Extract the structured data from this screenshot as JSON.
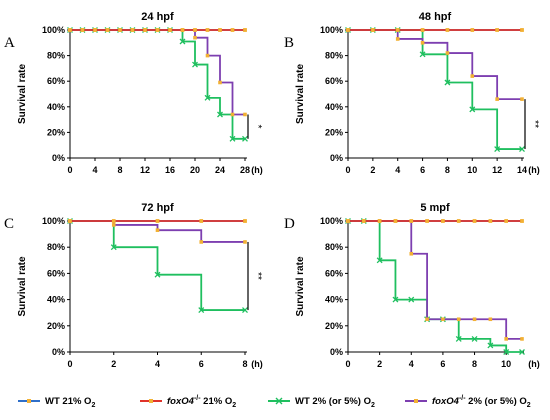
{
  "legend": [
    {
      "label": "WT 21% O",
      "sub": "2",
      "sup": "",
      "italic_prefix": "",
      "color": "#2f6fc9"
    },
    {
      "label": " 21% O",
      "sub": "2",
      "sup": "-/-",
      "italic_prefix": "foxO4",
      "color": "#e0332a"
    },
    {
      "label": "WT 2% (or 5%) O",
      "sub": "2",
      "sup": "",
      "italic_prefix": "",
      "color": "#1fbf5f"
    },
    {
      "label": " 2% (or 5%) O",
      "sub": "2",
      "sup": "-/-",
      "italic_prefix": "foxO4",
      "color": "#7d3fb0"
    }
  ],
  "marker_color": "#f2b134",
  "chart_data": [
    {
      "type": "line",
      "letter": "A",
      "title": "24 hpf",
      "ylabel": "Survival rate",
      "xunit": "(h)",
      "significance": "*",
      "xlim": [
        0,
        28
      ],
      "xticks": [
        0,
        4,
        8,
        12,
        16,
        20,
        24,
        28
      ],
      "ylim": [
        0,
        100
      ],
      "yticks": [
        "0%",
        "20%",
        "40%",
        "60%",
        "80%",
        "100%"
      ],
      "series": [
        {
          "x": [
            0,
            2,
            4,
            6,
            8,
            10,
            12,
            14,
            16,
            18,
            20,
            22,
            24,
            26,
            28
          ],
          "y": [
            100,
            100,
            100,
            100,
            100,
            100,
            100,
            100,
            100,
            100,
            100,
            100,
            100,
            100,
            100
          ]
        },
        {
          "x": [
            0,
            2,
            4,
            6,
            8,
            10,
            12,
            14,
            16,
            18,
            20,
            22,
            24,
            26,
            28
          ],
          "y": [
            100,
            100,
            100,
            100,
            100,
            100,
            100,
            100,
            100,
            100,
            100,
            100,
            100,
            100,
            100
          ]
        },
        {
          "x": [
            0,
            2,
            4,
            6,
            8,
            10,
            12,
            14,
            16,
            18,
            20,
            22,
            24,
            26,
            28
          ],
          "y": [
            100,
            100,
            100,
            100,
            100,
            100,
            100,
            100,
            100,
            91,
            73,
            47,
            34,
            15,
            15
          ]
        },
        {
          "x": [
            0,
            2,
            4,
            6,
            8,
            10,
            12,
            14,
            16,
            18,
            20,
            22,
            24,
            26,
            28
          ],
          "y": [
            100,
            100,
            100,
            100,
            100,
            100,
            100,
            100,
            100,
            100,
            94,
            80,
            59,
            34,
            34
          ]
        }
      ]
    },
    {
      "type": "line",
      "letter": "B",
      "title": "48 hpf",
      "ylabel": "Survival rate",
      "xunit": "(h)",
      "significance": "**",
      "xlim": [
        0,
        14
      ],
      "xticks": [
        0,
        2,
        4,
        6,
        8,
        10,
        12,
        14
      ],
      "ylim": [
        0,
        100
      ],
      "yticks": [
        "0%",
        "20%",
        "40%",
        "60%",
        "80%",
        "100%"
      ],
      "series": [
        {
          "x": [
            0,
            2,
            4,
            6,
            8,
            10,
            12,
            14
          ],
          "y": [
            100,
            100,
            100,
            100,
            100,
            100,
            100,
            100
          ]
        },
        {
          "x": [
            0,
            2,
            4,
            6,
            8,
            10,
            12,
            14
          ],
          "y": [
            100,
            100,
            100,
            100,
            100,
            100,
            100,
            100
          ]
        },
        {
          "x": [
            0,
            2,
            4,
            6,
            8,
            10,
            12,
            14
          ],
          "y": [
            100,
            100,
            100,
            81,
            59,
            38,
            7,
            7
          ]
        },
        {
          "x": [
            0,
            2,
            4,
            6,
            8,
            10,
            12,
            14
          ],
          "y": [
            100,
            100,
            93,
            90,
            82,
            64,
            46,
            46
          ]
        }
      ]
    },
    {
      "type": "line",
      "letter": "C",
      "title": "72 hpf",
      "ylabel": "Survival rate",
      "xunit": "(h)",
      "significance": "**",
      "xlim": [
        0,
        8
      ],
      "xticks": [
        0,
        2,
        4,
        6,
        8
      ],
      "ylim": [
        0,
        100
      ],
      "yticks": [
        "0%",
        "20%",
        "40%",
        "60%",
        "80%",
        "100%"
      ],
      "series": [
        {
          "x": [
            0,
            2,
            4,
            6,
            8
          ],
          "y": [
            100,
            100,
            100,
            100,
            100
          ]
        },
        {
          "x": [
            0,
            2,
            4,
            6,
            8
          ],
          "y": [
            100,
            100,
            100,
            100,
            100
          ]
        },
        {
          "x": [
            0,
            2,
            4,
            6,
            8
          ],
          "y": [
            100,
            80,
            59,
            32,
            32
          ]
        },
        {
          "x": [
            0,
            2,
            4,
            6,
            8
          ],
          "y": [
            100,
            97,
            93,
            84,
            84
          ]
        }
      ]
    },
    {
      "type": "line",
      "letter": "D",
      "title": "5 mpf",
      "ylabel": "Survival rate",
      "xunit": "(h)",
      "significance": "",
      "xlim": [
        0,
        11
      ],
      "xticks": [
        0,
        2,
        4,
        6,
        8,
        10
      ],
      "ylim": [
        0,
        100
      ],
      "yticks": [
        "0%",
        "20%",
        "40%",
        "60%",
        "80%",
        "100%"
      ],
      "series": [
        {
          "x": [
            0,
            1,
            2,
            3,
            4,
            5,
            6,
            7,
            8,
            9,
            10,
            11
          ],
          "y": [
            100,
            100,
            100,
            100,
            100,
            100,
            100,
            100,
            100,
            100,
            100,
            100
          ]
        },
        {
          "x": [
            0,
            1,
            2,
            3,
            4,
            5,
            6,
            7,
            8,
            9,
            10,
            11
          ],
          "y": [
            100,
            100,
            100,
            100,
            100,
            100,
            100,
            100,
            100,
            100,
            100,
            100
          ]
        },
        {
          "x": [
            0,
            1,
            2,
            3,
            4,
            5,
            6,
            7,
            8,
            9,
            10,
            11
          ],
          "y": [
            100,
            100,
            70,
            40,
            40,
            25,
            25,
            10,
            10,
            5,
            0,
            0
          ]
        },
        {
          "x": [
            0,
            1,
            2,
            3,
            4,
            5,
            6,
            7,
            8,
            9,
            10,
            11
          ],
          "y": [
            100,
            100,
            100,
            100,
            75,
            25,
            25,
            25,
            25,
            25,
            10,
            10
          ]
        }
      ]
    }
  ]
}
